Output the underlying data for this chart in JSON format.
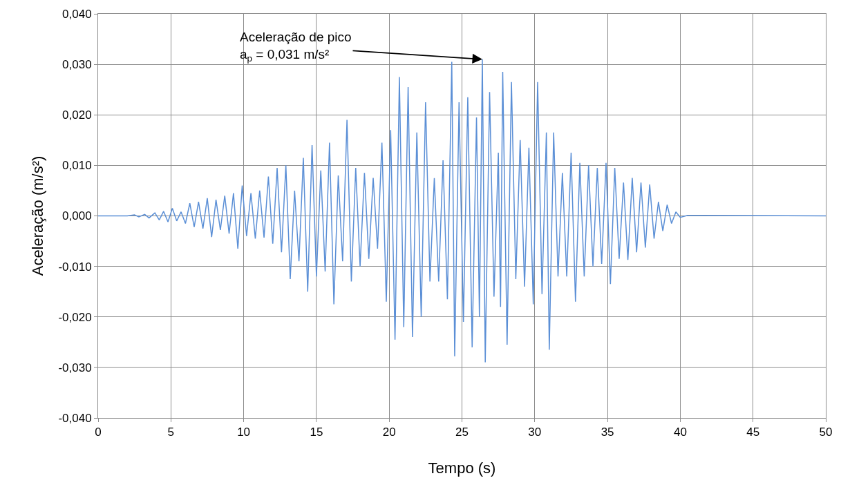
{
  "chart_data": {
    "type": "line",
    "xlabel": "Tempo (s)",
    "ylabel": "Aceleração (m/s²)",
    "xlim": [
      0,
      50
    ],
    "xticks": [
      0,
      5,
      10,
      15,
      20,
      25,
      30,
      35,
      40,
      45,
      50
    ],
    "ylim": [
      -0.04,
      0.04
    ],
    "yticks": [
      {
        "value": -0.04,
        "label": "-0,040"
      },
      {
        "value": -0.03,
        "label": "-0,030"
      },
      {
        "value": -0.02,
        "label": "-0,020"
      },
      {
        "value": -0.01,
        "label": "-0,010"
      },
      {
        "value": 0,
        "label": "0,000"
      },
      {
        "value": 0.01,
        "label": "0,010"
      },
      {
        "value": 0.02,
        "label": "0,020"
      },
      {
        "value": 0.03,
        "label": "0,030"
      },
      {
        "value": 0.04,
        "label": "0,040"
      }
    ],
    "grid": true,
    "marker": "none",
    "line_style": "solid",
    "annotations": [
      {
        "text": "Aceleração de pico\na$_{p}$ = 0,031 m/s²",
        "x": 26.4,
        "y": 0.031
      }
    ],
    "series": [
      {
        "color": "#5b8fd6",
        "x": [
          0,
          2,
          2.5,
          2.8,
          3.2,
          3.5,
          3.9,
          4.2,
          4.5,
          4.8,
          5.1,
          5.4,
          5.7,
          6.0,
          6.3,
          6.6,
          6.9,
          7.2,
          7.5,
          7.8,
          8.1,
          8.4,
          8.7,
          9.0,
          9.3,
          9.6,
          9.9,
          10.2,
          10.5,
          10.8,
          11.1,
          11.4,
          11.7,
          12.0,
          12.3,
          12.6,
          12.9,
          13.2,
          13.5,
          13.8,
          14.1,
          14.4,
          14.7,
          15.0,
          15.3,
          15.6,
          15.9,
          16.2,
          16.5,
          16.8,
          17.1,
          17.4,
          17.7,
          18.0,
          18.3,
          18.6,
          18.9,
          19.2,
          19.5,
          19.8,
          20.1,
          20.4,
          20.7,
          21.0,
          21.3,
          21.6,
          21.9,
          22.2,
          22.5,
          22.8,
          23.1,
          23.4,
          23.7,
          24.0,
          24.3,
          24.5,
          24.8,
          25.1,
          25.4,
          25.7,
          26.0,
          26.2,
          26.4,
          26.6,
          26.9,
          27.2,
          27.5,
          27.65,
          27.8,
          28.1,
          28.4,
          28.7,
          29.0,
          29.3,
          29.6,
          29.9,
          30.2,
          30.5,
          30.8,
          31.0,
          31.3,
          31.6,
          31.9,
          32.2,
          32.5,
          32.8,
          33.1,
          33.4,
          33.7,
          34.0,
          34.3,
          34.6,
          34.9,
          35.2,
          35.5,
          35.8,
          36.1,
          36.4,
          36.7,
          37.0,
          37.3,
          37.6,
          37.9,
          38.2,
          38.5,
          38.8,
          39.1,
          39.4,
          39.7,
          40.0,
          40.5,
          50
        ],
        "values": [
          0,
          0,
          0.0002,
          -0.0002,
          0.0003,
          -0.0004,
          0.0006,
          -0.0008,
          0.0009,
          -0.0012,
          0.0015,
          -0.001,
          0.0008,
          -0.0015,
          0.0025,
          -0.0022,
          0.0028,
          -0.0025,
          0.0035,
          -0.0042,
          0.0032,
          -0.0028,
          0.004,
          -0.0035,
          0.0045,
          -0.0065,
          0.006,
          -0.004,
          0.0045,
          -0.0045,
          0.005,
          -0.0043,
          0.0078,
          -0.0055,
          0.0095,
          -0.0072,
          0.01,
          -0.0125,
          0.005,
          -0.009,
          0.0115,
          -0.015,
          0.014,
          -0.012,
          0.009,
          -0.011,
          0.0145,
          -0.0175,
          0.008,
          -0.009,
          0.019,
          -0.013,
          0.0095,
          -0.01,
          0.0085,
          -0.0085,
          0.0075,
          -0.0065,
          0.0145,
          -0.017,
          0.017,
          -0.0245,
          0.0275,
          -0.022,
          0.0255,
          -0.024,
          0.0165,
          -0.02,
          0.0225,
          -0.013,
          0.0075,
          -0.013,
          0.011,
          -0.0165,
          0.0305,
          -0.0278,
          0.0225,
          -0.021,
          0.0235,
          -0.026,
          0.0195,
          -0.02,
          0.031,
          -0.029,
          0.0245,
          -0.016,
          0.0125,
          -0.018,
          0.0285,
          -0.0255,
          0.0265,
          -0.0125,
          0.015,
          -0.014,
          0.0135,
          -0.0175,
          0.0265,
          -0.0155,
          0.0165,
          -0.0265,
          0.0165,
          -0.012,
          0.0085,
          -0.012,
          0.0125,
          -0.017,
          0.0105,
          -0.012,
          0.01,
          -0.01,
          0.0095,
          -0.0095,
          0.0105,
          -0.0135,
          0.0095,
          -0.0085,
          0.0066,
          -0.0087,
          0.0075,
          -0.0072,
          0.0066,
          -0.0063,
          0.0062,
          -0.0045,
          0.0028,
          -0.003,
          0.0022,
          -0.0015,
          0.0008,
          -0.0003,
          0.0001,
          0
        ]
      }
    ]
  }
}
